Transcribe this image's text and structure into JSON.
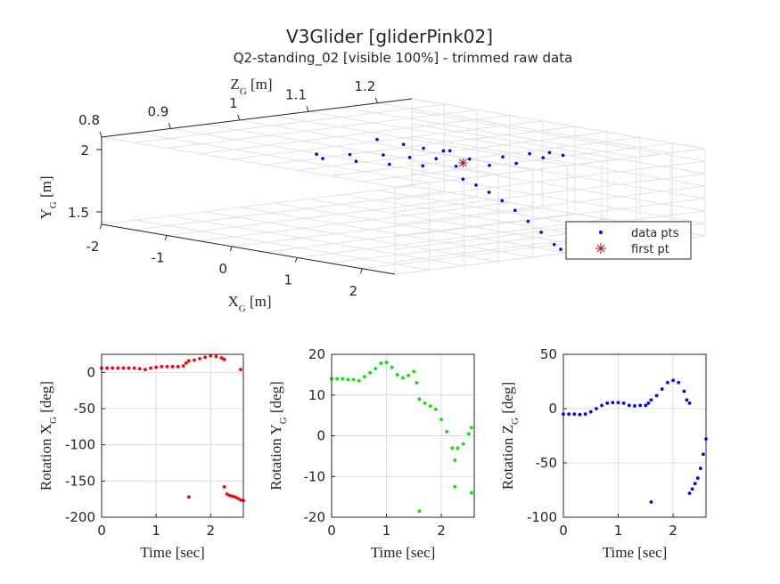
{
  "title": "V3Glider [gliderPink02]",
  "subtitle": "Q2-standing_02 [visible 100%] - trimmed raw data",
  "chart_data": [
    {
      "type": "scatter3d",
      "xlabel": "X_G [m]",
      "ylabel": "Y_G [m]",
      "zlabel": "Z_G [m]",
      "x_ticks": [
        "-2",
        "-1",
        "0",
        "1",
        "2"
      ],
      "y_ticks": [
        "1.5",
        "2"
      ],
      "z_ticks": [
        "0.8",
        "0.9",
        "1",
        "1.1",
        "1.2"
      ],
      "xlim": [
        -2,
        2.5
      ],
      "ylim": [
        1.4,
        2.1
      ],
      "zlim": [
        0.8,
        1.25
      ],
      "legend": [
        {
          "label": "data pts",
          "marker": "dot",
          "color": "#0000ff"
        },
        {
          "label": "first pt",
          "marker": "asterisk",
          "color": "#a0141e"
        }
      ],
      "legend_position": "right",
      "grid": true,
      "first_point": {
        "x": 0.9,
        "y": 1.98,
        "z": 1.05
      },
      "series": [
        {
          "name": "data pts",
          "color": "#0000ff",
          "points": [
            [
              -0.1,
              2.1,
              1.02
            ],
            [
              0.2,
              2.08,
              1.03
            ],
            [
              0.4,
              2.06,
              1.04
            ],
            [
              0.6,
              2.05,
              1.05
            ],
            [
              0.7,
              2.06,
              1.05
            ],
            [
              -0.5,
              1.98,
              0.97
            ],
            [
              -0.2,
              1.99,
              0.99
            ],
            [
              0.1,
              2.0,
              1.01
            ],
            [
              0.4,
              2.0,
              1.02
            ],
            [
              0.7,
              2.01,
              1.03
            ],
            [
              1.0,
              2.02,
              1.05
            ],
            [
              1.3,
              2.05,
              1.07
            ],
            [
              1.5,
              2.08,
              1.09
            ],
            [
              1.7,
              2.1,
              1.1
            ],
            [
              1.8,
              2.08,
              1.11
            ],
            [
              1.6,
              2.05,
              1.1
            ],
            [
              1.4,
              2.0,
              1.08
            ],
            [
              1.2,
              1.98,
              1.06
            ],
            [
              0.9,
              1.96,
              1.04
            ],
            [
              0.6,
              1.95,
              1.02
            ],
            [
              0.3,
              1.95,
              1.0
            ],
            [
              0.0,
              1.96,
              0.98
            ],
            [
              -0.3,
              1.97,
              0.96
            ],
            [
              0.9,
              1.85,
              1.05
            ],
            [
              1.1,
              1.82,
              1.05
            ],
            [
              1.3,
              1.78,
              1.05
            ],
            [
              1.5,
              1.73,
              1.05
            ],
            [
              1.7,
              1.67,
              1.05
            ],
            [
              1.9,
              1.6,
              1.05
            ],
            [
              2.1,
              1.53,
              1.05
            ],
            [
              2.3,
              1.45,
              1.05
            ],
            [
              2.4,
              1.42,
              1.05
            ]
          ]
        }
      ]
    },
    {
      "type": "scatter",
      "xlabel": "Time [sec]",
      "ylabel": "Rotation X_G [deg]",
      "x_ticks": [
        "0",
        "1",
        "2"
      ],
      "y_ticks": [
        "0",
        "-50",
        "-100",
        "-150",
        "-200"
      ],
      "xlim": [
        0,
        2.6
      ],
      "ylim": [
        -200,
        25
      ],
      "grid": true,
      "series": [
        {
          "name": "Rotation X_G",
          "color": "#ff0000",
          "points": [
            [
              0.0,
              6
            ],
            [
              0.1,
              6
            ],
            [
              0.2,
              6
            ],
            [
              0.3,
              6
            ],
            [
              0.4,
              6
            ],
            [
              0.5,
              6
            ],
            [
              0.6,
              6
            ],
            [
              0.7,
              5
            ],
            [
              0.8,
              4
            ],
            [
              0.9,
              6
            ],
            [
              1.0,
              7
            ],
            [
              1.1,
              8
            ],
            [
              1.2,
              8
            ],
            [
              1.3,
              8
            ],
            [
              1.4,
              8
            ],
            [
              1.5,
              9
            ],
            [
              1.55,
              13
            ],
            [
              1.6,
              16
            ],
            [
              1.7,
              17
            ],
            [
              1.8,
              19
            ],
            [
              1.9,
              21
            ],
            [
              2.0,
              23
            ],
            [
              2.1,
              22
            ],
            [
              2.2,
              20
            ],
            [
              2.25,
              18
            ],
            [
              2.55,
              4
            ],
            [
              1.6,
              -172
            ],
            [
              2.25,
              -158
            ],
            [
              2.3,
              -168
            ],
            [
              2.35,
              -170
            ],
            [
              2.4,
              -171
            ],
            [
              2.45,
              -172
            ],
            [
              2.5,
              -174
            ],
            [
              2.55,
              -176
            ],
            [
              2.6,
              -177
            ]
          ]
        }
      ]
    },
    {
      "type": "scatter",
      "xlabel": "Time [sec]",
      "ylabel": "Rotation Y_G [deg]",
      "x_ticks": [
        "0",
        "1",
        "2"
      ],
      "y_ticks": [
        "20",
        "10",
        "0",
        "-10",
        "-20"
      ],
      "xlim": [
        0,
        2.6
      ],
      "ylim": [
        -20,
        20
      ],
      "grid": true,
      "series": [
        {
          "name": "Rotation Y_G",
          "color": "#00e600",
          "points": [
            [
              0.0,
              14
            ],
            [
              0.1,
              14
            ],
            [
              0.2,
              14
            ],
            [
              0.3,
              13.8
            ],
            [
              0.4,
              13.8
            ],
            [
              0.5,
              13.5
            ],
            [
              0.6,
              14.5
            ],
            [
              0.7,
              15.5
            ],
            [
              0.8,
              16.5
            ],
            [
              0.9,
              17.8
            ],
            [
              1.0,
              18
            ],
            [
              1.1,
              16.8
            ],
            [
              1.2,
              15
            ],
            [
              1.3,
              14.2
            ],
            [
              1.4,
              14.8
            ],
            [
              1.5,
              15.8
            ],
            [
              1.55,
              13
            ],
            [
              1.6,
              9
            ],
            [
              1.7,
              8
            ],
            [
              1.8,
              7.3
            ],
            [
              1.9,
              6.5
            ],
            [
              2.0,
              4
            ],
            [
              2.1,
              1
            ],
            [
              2.2,
              -3
            ],
            [
              2.25,
              -6
            ],
            [
              2.3,
              -3
            ],
            [
              2.4,
              -2
            ],
            [
              2.5,
              0.5
            ],
            [
              2.55,
              2
            ],
            [
              1.6,
              -18.5
            ],
            [
              2.25,
              -12.5
            ],
            [
              2.55,
              -14
            ]
          ]
        }
      ]
    },
    {
      "type": "scatter",
      "xlabel": "Time [sec]",
      "ylabel": "Rotation Z_G [deg]",
      "x_ticks": [
        "0",
        "1",
        "2"
      ],
      "y_ticks": [
        "50",
        "0",
        "-50",
        "-100"
      ],
      "xlim": [
        0,
        2.6
      ],
      "ylim": [
        -100,
        50
      ],
      "grid": true,
      "series": [
        {
          "name": "Rotation Z_G",
          "color": "#0000ff",
          "points": [
            [
              0.0,
              -5
            ],
            [
              0.1,
              -5
            ],
            [
              0.2,
              -5
            ],
            [
              0.3,
              -5.5
            ],
            [
              0.4,
              -5
            ],
            [
              0.5,
              -3
            ],
            [
              0.6,
              0
            ],
            [
              0.7,
              3
            ],
            [
              0.8,
              5
            ],
            [
              0.9,
              5.5
            ],
            [
              1.0,
              5.5
            ],
            [
              1.1,
              5
            ],
            [
              1.2,
              3
            ],
            [
              1.3,
              2.5
            ],
            [
              1.4,
              3
            ],
            [
              1.5,
              3
            ],
            [
              1.55,
              5
            ],
            [
              1.6,
              8
            ],
            [
              1.7,
              12
            ],
            [
              1.8,
              18
            ],
            [
              1.9,
              24
            ],
            [
              2.0,
              26
            ],
            [
              2.1,
              24
            ],
            [
              2.2,
              16
            ],
            [
              2.25,
              8
            ],
            [
              2.3,
              5
            ],
            [
              1.6,
              -86
            ],
            [
              2.3,
              -78
            ],
            [
              2.35,
              -74
            ],
            [
              2.4,
              -69
            ],
            [
              2.45,
              -64
            ],
            [
              2.5,
              -55
            ],
            [
              2.55,
              -42
            ],
            [
              2.6,
              -28
            ]
          ]
        }
      ]
    }
  ]
}
